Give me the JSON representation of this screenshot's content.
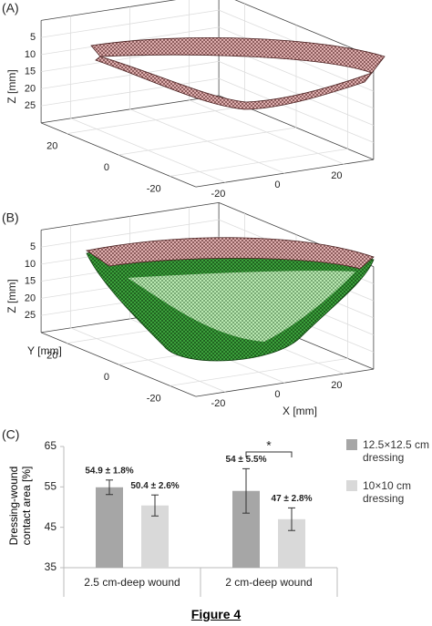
{
  "chart_data": [
    {
      "type": "surface3d",
      "panel_label": "(A)",
      "zlabel": "Z [mm]",
      "xlim": [
        -30,
        30
      ],
      "ylim": [
        -30,
        30
      ],
      "zlim": [
        0,
        30
      ],
      "xticks": [
        -20,
        0,
        20
      ],
      "yticks": [
        -20,
        0,
        20
      ],
      "zticks": [
        5,
        10,
        15,
        20,
        25
      ],
      "grid": true
    },
    {
      "type": "surface3d",
      "panel_label": "(B)",
      "zlabel": "Z [mm]",
      "ylabel": "Y [mm]",
      "xlabel": "X [mm]",
      "xlim": [
        -30,
        30
      ],
      "ylim": [
        -30,
        30
      ],
      "zlim": [
        0,
        30
      ],
      "xticks": [
        -20,
        0,
        20
      ],
      "yticks": [
        -20,
        0,
        20
      ],
      "zticks": [
        5,
        10,
        15,
        20,
        25
      ],
      "grid": true
    },
    {
      "type": "bar",
      "panel_label": "(C)",
      "ylabel": "Dressing-wound contact area [%]",
      "categories": [
        "2.5 cm-deep wound",
        "2 cm-deep wound"
      ],
      "series": [
        {
          "name": "12.5×12.5 cm dressing",
          "color": "#a6a6a6",
          "values": [
            54.9,
            54
          ],
          "errors": [
            1.8,
            5.5
          ],
          "value_labels": [
            "54.9 ± 1.8%",
            "54 ± 5.5%"
          ]
        },
        {
          "name": "10×10 cm dressing",
          "color": "#d9d9d9",
          "values": [
            50.4,
            47
          ],
          "errors": [
            2.6,
            2.8
          ],
          "value_labels": [
            "50.4 ± 2.6%",
            "47 ± 2.8%"
          ]
        }
      ],
      "ylim": [
        35,
        65
      ],
      "yticks": [
        35,
        45,
        55,
        65
      ],
      "grid": false,
      "significance_label": "*"
    }
  ],
  "caption": "Figure 4"
}
